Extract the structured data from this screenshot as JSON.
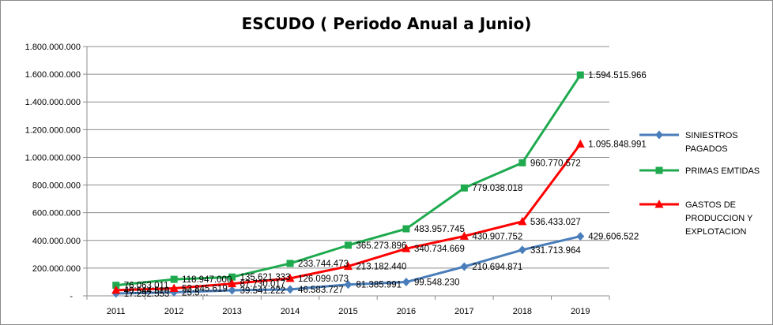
{
  "chart_data": {
    "type": "line",
    "title": "ESCUDO ( Periodo Anual a Junio)",
    "categories": [
      "2011",
      "2012",
      "2013",
      "2014",
      "2015",
      "2016",
      "2017",
      "2018",
      "2019"
    ],
    "ylim": [
      0,
      1800000000
    ],
    "yticks": [
      {
        "value": 0,
        "label": "-"
      },
      {
        "value": 200000000,
        "label": "200.000.000"
      },
      {
        "value": 400000000,
        "label": "400.000.000"
      },
      {
        "value": 600000000,
        "label": "600.000.000"
      },
      {
        "value": 800000000,
        "label": "800.000.000"
      },
      {
        "value": 1000000000,
        "label": "1.000.000.000"
      },
      {
        "value": 1200000000,
        "label": "1.200.000.000"
      },
      {
        "value": 1400000000,
        "label": "1.400.000.000"
      },
      {
        "value": 1600000000,
        "label": "1.600.000.000"
      },
      {
        "value": 1800000000,
        "label": "1.800.000.000"
      }
    ],
    "grid": "horizontal",
    "legend_position": "right",
    "series": [
      {
        "name": "SINIESTROS PAGADOS",
        "legend_lines": [
          "SINIESTROS",
          "PAGADOS"
        ],
        "color": "#4a7ebb",
        "marker": "diamond",
        "values": [
          17292553,
          25545000,
          39541222,
          46583727,
          81385991,
          99548230,
          210694871,
          331713964,
          429606522
        ],
        "labels": [
          "17.292.553",
          "25.5…",
          "39.541.222",
          "46.583.727",
          "81.385.991",
          "99.548.230",
          "210.694.871",
          "331.713.964",
          "429.606.522"
        ]
      },
      {
        "name": "PRIMAS EMTIDAS",
        "legend_lines": [
          "PRIMAS EMTIDAS"
        ],
        "color": "#1faa4f",
        "marker": "square",
        "values": [
          76063011,
          118947000,
          135621333,
          233744473,
          365273896,
          483957745,
          779038018,
          960770572,
          1594515966
        ],
        "labels": [
          "76.063.011",
          "118.947.000",
          "135.621.333",
          "233.744.473",
          "365.273.896",
          "483.957.745",
          "779.038.018",
          "960.770.572",
          "1.594.515.966"
        ]
      },
      {
        "name": "GASTOS DE PRODUCCION Y EXPLOTACION",
        "legend_lines": [
          "GASTOS DE",
          "PRODUCCION Y",
          "EXPLOTACION"
        ],
        "color": "#ff0000",
        "marker": "triangle",
        "values": [
          40544510,
          53845619,
          87730017,
          126099073,
          213182440,
          340734669,
          430907752,
          536433027,
          1095848991
        ],
        "labels": [
          "40.544.510",
          "53.845.619",
          "87.730.017",
          "126.099.073",
          "213.182.440",
          "340.734.669",
          "430.907.752",
          "536.433.027",
          "1.095.848.991"
        ]
      }
    ]
  }
}
